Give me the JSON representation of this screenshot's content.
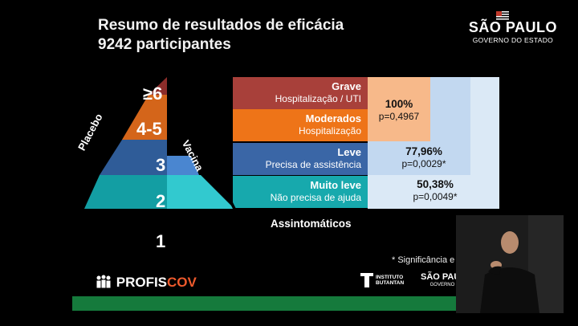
{
  "header": {
    "title_line1": "Resumo de resultados de eficácia",
    "title_line2": "9242 participantes"
  },
  "logo": {
    "name": "SÃO PAULO",
    "subtitle": "GOVERNO DO ESTADO"
  },
  "pyramid": {
    "placebo_label": "Placebo",
    "vaccine_label": "Vacina",
    "levels": [
      "≥6",
      "4-5",
      "3",
      "2",
      "1"
    ]
  },
  "severity_rows": [
    {
      "name": "Grave",
      "detail": "Hospitalização / UTI",
      "color": "#a8403a"
    },
    {
      "name": "Moderados",
      "detail": "Hospitalização",
      "color": "#ee7418"
    },
    {
      "name": "Leve",
      "detail": "Precisa de assistência",
      "color": "#3a66a6"
    },
    {
      "name": "Muito leve",
      "detail": "Não precisa de ajuda",
      "color": "#17a9ad"
    }
  ],
  "asymptomatic_label": "Assintomáticos",
  "results": [
    {
      "value": "100%",
      "p": "p=0,4967"
    },
    {
      "value": "77,96%",
      "p": "p=0,0029*"
    },
    {
      "value": "50,38%",
      "p": "p=0,0049*"
    }
  ],
  "footnote": "* Significância e",
  "footer": {
    "profis_a": "PROFIS",
    "profis_b": "COV",
    "butantan_line1": "INSTITUTO",
    "butantan_line2": "BUTANTAN",
    "sp_small": "SÃO PAULO",
    "sp_small_sub": "GOVERNO DO"
  },
  "colors": {
    "grave": "#a8403a",
    "moderado": "#ee7418",
    "leve": "#3a66a6",
    "muito_leve": "#17a9ad",
    "panel_light": "#dbe9f6",
    "panel_mid": "#c2d8f0",
    "panel_peach": "#f7b98a",
    "green_bar": "#157a3c"
  }
}
